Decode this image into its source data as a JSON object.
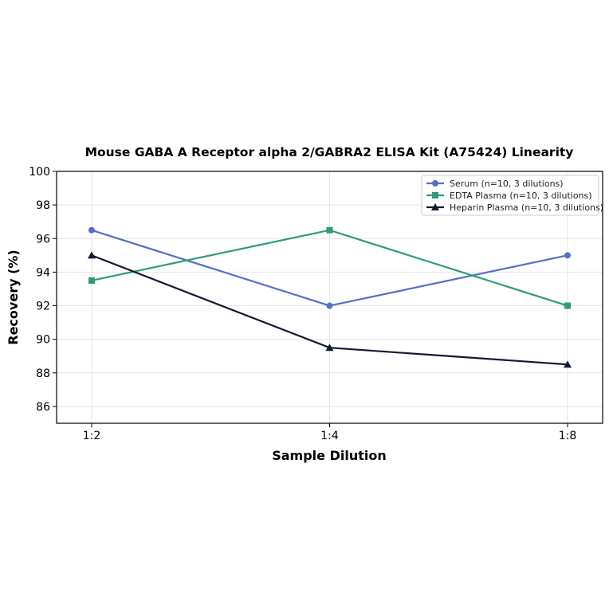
{
  "chart_data": {
    "type": "line",
    "title": "Mouse GABA A Receptor alpha 2/GABRA2 ELISA Kit (A75424) Linearity",
    "xlabel": "Sample Dilution",
    "ylabel": "Recovery (%)",
    "categories": [
      "1:2",
      "1:4",
      "1:8"
    ],
    "ylim": [
      85,
      100
    ],
    "yticks": [
      86,
      88,
      90,
      92,
      94,
      96,
      98,
      100
    ],
    "grid": true,
    "legend_position": "top-right",
    "series": [
      {
        "name": "Serum (n=10, 3 dilutions)",
        "values": [
          96.5,
          92.0,
          95.0
        ],
        "color": "#5470c6",
        "marker": "circle"
      },
      {
        "name": "EDTA Plasma (n=10, 3 dilutions)",
        "values": [
          93.5,
          96.5,
          92.0
        ],
        "color": "#2e9c77",
        "marker": "square"
      },
      {
        "name": "Heparin Plasma (n=10, 3 dilutions)",
        "values": [
          95.0,
          89.5,
          88.5
        ],
        "color": "#111a33",
        "marker": "triangle"
      }
    ]
  }
}
